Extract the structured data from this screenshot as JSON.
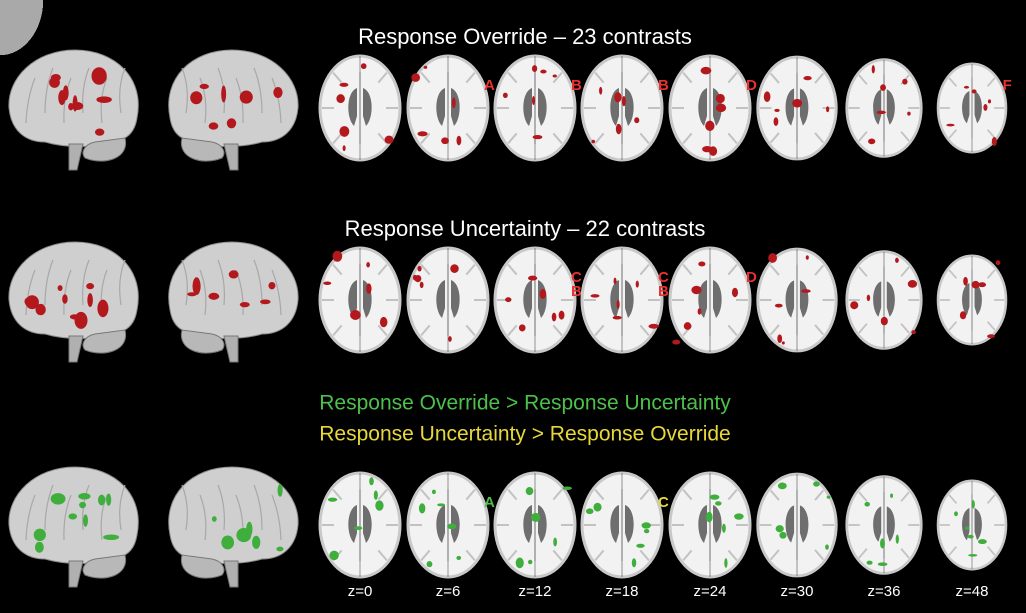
{
  "rows": [
    {
      "title": "Response Override – 23 contrasts",
      "blob_color": "#b3191c",
      "slices": [
        [],
        [
          {
            "label": "A",
            "color": "#e8322e"
          }
        ],
        [
          {
            "label": "B",
            "color": "#e8322e"
          }
        ],
        [
          {
            "label": "B",
            "color": "#e8322e"
          }
        ],
        [
          {
            "label": "D",
            "color": "#e8322e"
          }
        ],
        [],
        [],
        [
          {
            "label": "F",
            "color": "#e8322e"
          }
        ]
      ]
    },
    {
      "title": "Response Uncertainty – 22 contrasts",
      "blob_color": "#b3191c",
      "slices": [
        [],
        [],
        [
          {
            "label": "C",
            "color": "#e8322e"
          },
          {
            "label": "B",
            "color": "#e8322e"
          }
        ],
        [
          {
            "label": "C",
            "color": "#e8322e"
          },
          {
            "label": "B",
            "color": "#e8322e"
          }
        ],
        [
          {
            "label": "D",
            "color": "#e8322e"
          }
        ],
        [],
        [],
        []
      ]
    },
    {
      "legend": [
        {
          "text": "Response Override > Response Uncertainty",
          "color": "#4cc04a"
        },
        {
          "text": "Response Uncertainty > Response Override",
          "color": "#e6d83a"
        }
      ],
      "blob_color": "#3fae3c",
      "slices": [
        [],
        [
          {
            "label": "A",
            "color": "#4cc04a"
          }
        ],
        [],
        [
          {
            "label": "C",
            "color": "#e6d83a"
          }
        ],
        [],
        [],
        [],
        []
      ]
    }
  ],
  "z_labels": [
    "z=0",
    "z=6",
    "z=12",
    "z=18",
    "z=24",
    "z=30",
    "z=36",
    "z=48"
  ]
}
